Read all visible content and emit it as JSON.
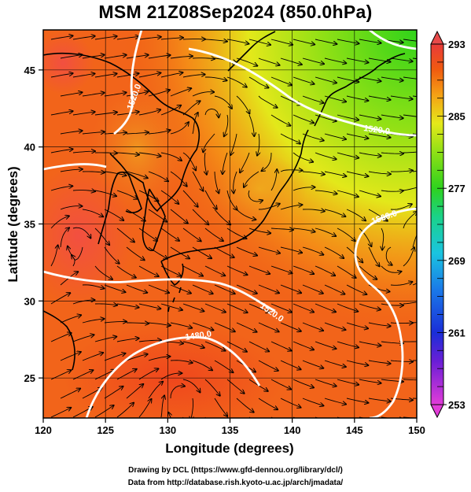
{
  "title": "MSM 21Z08Sep2024 (850.0hPa)",
  "map": {
    "x_axis": {
      "label": "Longitude (degrees)",
      "range": [
        120,
        150
      ],
      "ticks": [
        "120",
        "125",
        "130",
        "135",
        "140",
        "145",
        "150"
      ]
    },
    "y_axis": {
      "label": "Latitude  (degrees)",
      "range": [
        22.4,
        47.6
      ],
      "ticks": [
        "25",
        "30",
        "35",
        "40",
        "45"
      ]
    },
    "field": "temperature (shaded) with streamlines and geopotential height contours",
    "contour_labels": [
      "1520.0",
      "1520.0",
      "1560.0",
      "1520.0",
      "1480.0"
    ],
    "colorbar": {
      "min": 253,
      "max": 293,
      "labels": [
        "293",
        "285",
        "277",
        "269",
        "261",
        "253"
      ]
    }
  },
  "credits": {
    "line1": "Drawing by DCL (https://www.gfd-dennou.org/library/dcl/)",
    "line2": "Data from http://database.rish.kyoto-u.ac.jp/arch/jmadata/"
  }
}
